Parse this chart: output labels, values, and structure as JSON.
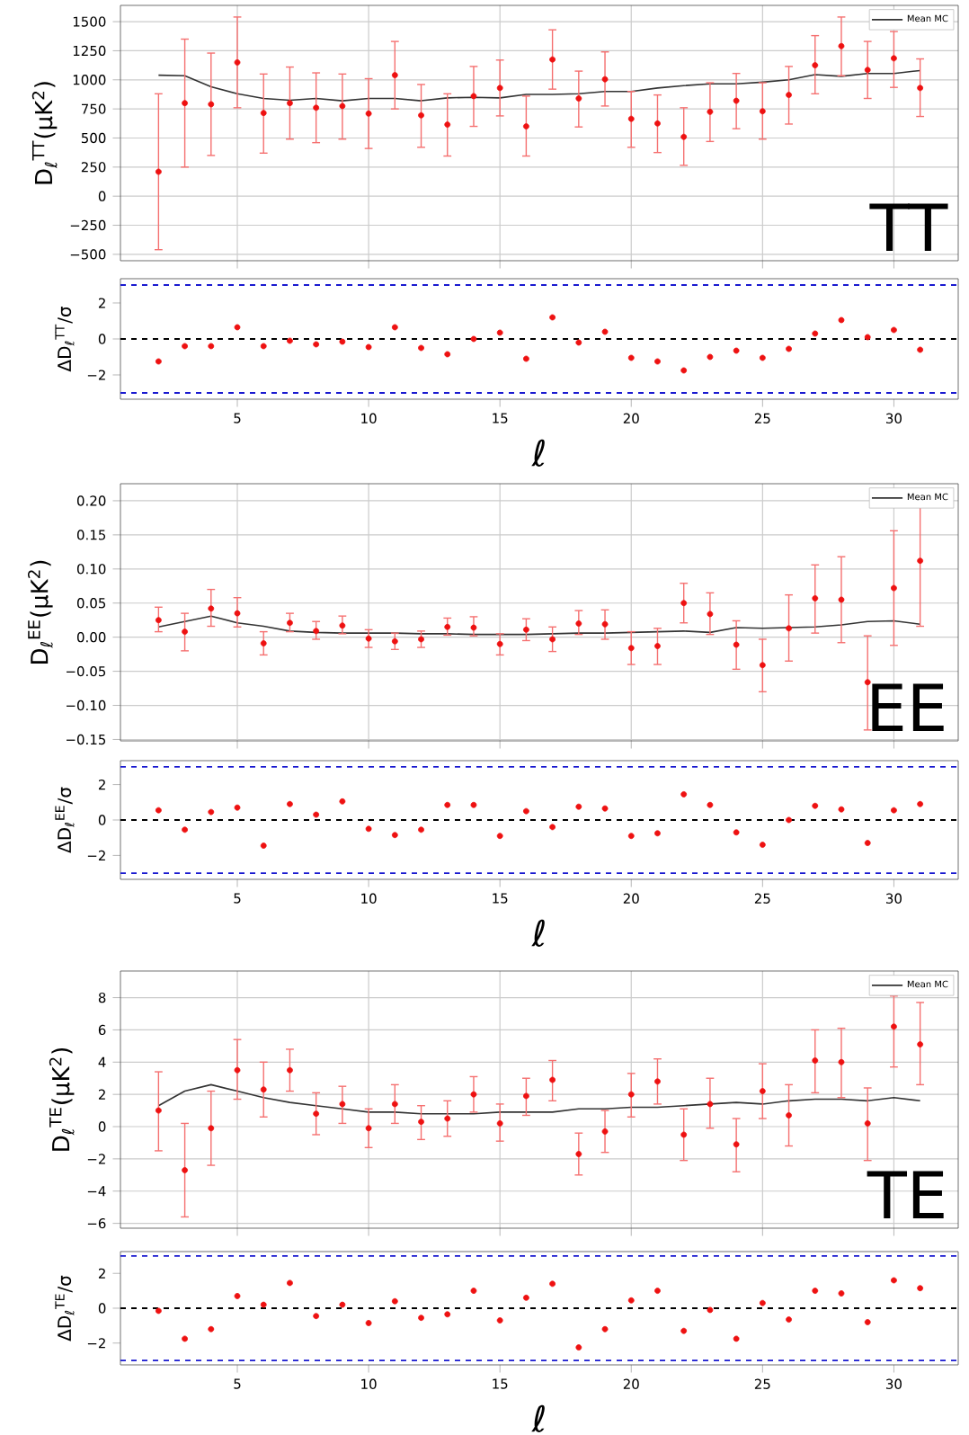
{
  "chart_data": [
    {
      "type": "scatter",
      "x": [
        2,
        3,
        4,
        5,
        6,
        7,
        8,
        9,
        10,
        11,
        12,
        13,
        14,
        15,
        16,
        17,
        18,
        19,
        20,
        21,
        22,
        23,
        24,
        25,
        26,
        27,
        28,
        29,
        30,
        31
      ],
      "xlim": [
        0.55,
        32.45
      ],
      "xticks": [
        5,
        10,
        15,
        20,
        25,
        30
      ],
      "tick_labels": "y",
      "ylim": [
        -555,
        1640
      ],
      "yticks": [
        {
          "value": -500,
          "label": "−500"
        },
        {
          "value": -250,
          "label": "−250"
        },
        0,
        250,
        500,
        750,
        1000,
        1250,
        1500
      ],
      "ylabel": "D$_{ℓ}$$^{TT}$(μK$^{2}$)",
      "grid": true,
      "legend": "top right",
      "annotations": [
        "TT"
      ],
      "series": [
        {
          "name": "Mean MC",
          "type": "line",
          "color": "#333333",
          "marker": "none",
          "values": [
            1040,
            1035,
            940,
            880,
            840,
            825,
            840,
            820,
            840,
            840,
            820,
            845,
            850,
            845,
            875,
            875,
            880,
            900,
            900,
            930,
            950,
            965,
            965,
            980,
            1000,
            1045,
            1030,
            1055,
            1055,
            1080
          ]
        },
        {
          "type": "scatter",
          "color": "#ee1111",
          "marker": "circle",
          "values": [
            210,
            800,
            790,
            1150,
            715,
            800,
            760,
            775,
            710,
            1040,
            695,
            615,
            860,
            930,
            600,
            1175,
            840,
            1005,
            665,
            625,
            510,
            725,
            820,
            730,
            870,
            1125,
            1290,
            1085,
            1185,
            930
          ],
          "errors": [
            [
              -460,
              880
            ],
            [
              250,
              1350
            ],
            [
              350,
              1230
            ],
            [
              760,
              1540
            ],
            [
              370,
              1050
            ],
            [
              490,
              1110
            ],
            [
              460,
              1060
            ],
            [
              490,
              1050
            ],
            [
              410,
              1010
            ],
            [
              750,
              1330
            ],
            [
              420,
              960
            ],
            [
              345,
              880
            ],
            [
              600,
              1115
            ],
            [
              690,
              1170
            ],
            [
              345,
              860
            ],
            [
              920,
              1430
            ],
            [
              595,
              1075
            ],
            [
              775,
              1240
            ],
            [
              420,
              900
            ],
            [
              375,
              870
            ],
            [
              265,
              760
            ],
            [
              470,
              975
            ],
            [
              580,
              1055
            ],
            [
              490,
              975
            ],
            [
              620,
              1115
            ],
            [
              880,
              1380
            ],
            [
              1035,
              1540
            ],
            [
              840,
              1330
            ],
            [
              935,
              1415
            ],
            [
              685,
              1180
            ]
          ]
        }
      ]
    },
    {
      "type": "scatter",
      "x": [
        2,
        3,
        4,
        5,
        6,
        7,
        8,
        9,
        10,
        11,
        12,
        13,
        14,
        15,
        16,
        17,
        18,
        19,
        20,
        21,
        22,
        23,
        24,
        25,
        26,
        27,
        28,
        29,
        30,
        31
      ],
      "xlim": [
        0.55,
        32.45
      ],
      "xticks": [
        5,
        10,
        15,
        20,
        25,
        30
      ],
      "ylim": [
        -3.35,
        3.35
      ],
      "yticks": [
        {
          "value": -2,
          "label": "−2"
        },
        0,
        2
      ],
      "xlabel": "ℓ",
      "ylabel": "ΔD$_{ℓ}$$^{TT}$/σ",
      "color": "#ee1111",
      "marker": "circle",
      "values": [
        -1.25,
        -0.4,
        -0.4,
        0.65,
        -0.4,
        -0.1,
        -0.3,
        -0.15,
        -0.45,
        0.65,
        -0.5,
        -0.85,
        0.0,
        0.35,
        -1.1,
        1.2,
        -0.2,
        0.4,
        -1.05,
        -1.25,
        -1.75,
        -1.0,
        -0.65,
        -1.05,
        -0.55,
        0.3,
        1.05,
        0.1,
        0.5,
        -0.6
      ],
      "ref_lines": [
        {
          "axis": "y",
          "value": 0,
          "color": "#000000",
          "line_style": "dashed"
        },
        {
          "axis": "y",
          "value": 3,
          "color": "#1a1ad0",
          "line_style": "dashed"
        },
        {
          "axis": "y",
          "value": -3,
          "color": "#1a1ad0",
          "line_style": "dashed"
        }
      ]
    },
    {
      "type": "scatter",
      "x": [
        2,
        3,
        4,
        5,
        6,
        7,
        8,
        9,
        10,
        11,
        12,
        13,
        14,
        15,
        16,
        17,
        18,
        19,
        20,
        21,
        22,
        23,
        24,
        25,
        26,
        27,
        28,
        29,
        30,
        31
      ],
      "xlim": [
        0.55,
        32.45
      ],
      "xticks": [
        5,
        10,
        15,
        20,
        25,
        30
      ],
      "tick_labels": "y",
      "ylim": [
        -0.152,
        0.225
      ],
      "yticks": [
        {
          "value": -0.15,
          "label": "−0.15"
        },
        {
          "value": -0.1,
          "label": "−0.10"
        },
        {
          "value": -0.05,
          "label": "−0.05"
        },
        {
          "value": 0,
          "label": "0.00"
        },
        {
          "value": 0.05,
          "label": "0.05"
        },
        {
          "value": 0.1,
          "label": "0.10"
        },
        {
          "value": 0.15,
          "label": "0.15"
        },
        {
          "value": 0.2,
          "label": "0.20"
        }
      ],
      "ylabel": "D$_{ℓ}$$^{EE}$(μK$^{2}$)",
      "grid": true,
      "legend": "top right",
      "annotations": [
        "EE"
      ],
      "series": [
        {
          "name": "Mean MC",
          "type": "line",
          "color": "#333333",
          "marker": "none",
          "values": [
            0.015,
            0.023,
            0.031,
            0.021,
            0.016,
            0.009,
            0.007,
            0.006,
            0.006,
            0.006,
            0.005,
            0.005,
            0.004,
            0.004,
            0.004,
            0.005,
            0.006,
            0.006,
            0.007,
            0.008,
            0.009,
            0.007,
            0.014,
            0.013,
            0.014,
            0.015,
            0.018,
            0.023,
            0.024,
            0.019
          ]
        },
        {
          "type": "scatter",
          "color": "#ee1111",
          "marker": "circle",
          "values": [
            0.025,
            0.008,
            0.042,
            0.035,
            -0.009,
            0.021,
            0.009,
            0.017,
            -0.002,
            -0.006,
            -0.003,
            0.015,
            0.014,
            -0.01,
            0.011,
            -0.003,
            0.02,
            0.019,
            -0.016,
            -0.013,
            0.05,
            0.034,
            -0.011,
            -0.041,
            0.013,
            0.057,
            0.055,
            -0.066,
            0.072,
            0.112
          ],
          "errors": [
            [
              0.008,
              0.044
            ],
            [
              -0.02,
              0.035
            ],
            [
              0.016,
              0.07
            ],
            [
              0.015,
              0.058
            ],
            [
              -0.026,
              0.008
            ],
            [
              0.008,
              0.035
            ],
            [
              -0.003,
              0.023
            ],
            [
              0.005,
              0.031
            ],
            [
              -0.015,
              0.011
            ],
            [
              -0.018,
              0.006
            ],
            [
              -0.015,
              0.009
            ],
            [
              0.003,
              0.028
            ],
            [
              0.002,
              0.03
            ],
            [
              -0.026,
              0.005
            ],
            [
              -0.005,
              0.027
            ],
            [
              -0.021,
              0.015
            ],
            [
              0.004,
              0.039
            ],
            [
              -0.003,
              0.04
            ],
            [
              -0.04,
              0.008
            ],
            [
              -0.04,
              0.013
            ],
            [
              0.021,
              0.079
            ],
            [
              0.004,
              0.065
            ],
            [
              -0.047,
              0.024
            ],
            [
              -0.08,
              -0.003
            ],
            [
              -0.035,
              0.062
            ],
            [
              0.006,
              0.106
            ],
            [
              -0.008,
              0.118
            ],
            [
              -0.136,
              0.002
            ],
            [
              -0.012,
              0.156
            ],
            [
              0.016,
              0.21
            ]
          ]
        }
      ]
    },
    {
      "type": "scatter",
      "x": [
        2,
        3,
        4,
        5,
        6,
        7,
        8,
        9,
        10,
        11,
        12,
        13,
        14,
        15,
        16,
        17,
        18,
        19,
        20,
        21,
        22,
        23,
        24,
        25,
        26,
        27,
        28,
        29,
        30,
        31
      ],
      "xlim": [
        0.55,
        32.45
      ],
      "xticks": [
        5,
        10,
        15,
        20,
        25,
        30
      ],
      "ylim": [
        -3.35,
        3.35
      ],
      "yticks": [
        {
          "value": -2,
          "label": "−2"
        },
        0,
        2
      ],
      "xlabel": "ℓ",
      "ylabel": "ΔD$_{ℓ}$$^{EE}$/σ",
      "color": "#ee1111",
      "marker": "circle",
      "values": [
        0.55,
        -0.55,
        0.45,
        0.7,
        -1.45,
        0.9,
        0.3,
        1.05,
        -0.5,
        -0.85,
        -0.55,
        0.85,
        0.85,
        -0.9,
        0.5,
        -0.4,
        0.75,
        0.65,
        -0.9,
        -0.75,
        1.45,
        0.85,
        -0.7,
        -1.4,
        0.0,
        0.8,
        0.6,
        -1.3,
        0.55,
        0.9
      ],
      "ref_lines": [
        {
          "axis": "y",
          "value": 0,
          "color": "#000000",
          "line_style": "dashed"
        },
        {
          "axis": "y",
          "value": 3,
          "color": "#1a1ad0",
          "line_style": "dashed"
        },
        {
          "axis": "y",
          "value": -3,
          "color": "#1a1ad0",
          "line_style": "dashed"
        }
      ]
    },
    {
      "type": "scatter",
      "x": [
        2,
        3,
        4,
        5,
        6,
        7,
        8,
        9,
        10,
        11,
        12,
        13,
        14,
        15,
        16,
        17,
        18,
        19,
        20,
        21,
        22,
        23,
        24,
        25,
        26,
        27,
        28,
        29,
        30,
        31
      ],
      "xlim": [
        0.55,
        32.45
      ],
      "xticks": [
        5,
        10,
        15,
        20,
        25,
        30
      ],
      "tick_labels": "y",
      "ylim": [
        -6.3,
        9.65
      ],
      "yticks": [
        {
          "value": -6,
          "label": "−6"
        },
        {
          "value": -4,
          "label": "−4"
        },
        {
          "value": -2,
          "label": "−2"
        },
        0,
        2,
        4,
        6,
        8
      ],
      "ylabel": "D$_{ℓ}$$^{TE}$(μK$^{2}$)",
      "grid": true,
      "legend": "top right",
      "annotations": [
        "TE"
      ],
      "series": [
        {
          "name": "Mean MC",
          "type": "line",
          "color": "#333333",
          "marker": "none",
          "values": [
            1.3,
            2.2,
            2.6,
            2.2,
            1.8,
            1.5,
            1.3,
            1.1,
            0.9,
            0.9,
            0.8,
            0.8,
            0.8,
            0.9,
            0.9,
            0.9,
            1.1,
            1.1,
            1.2,
            1.2,
            1.3,
            1.4,
            1.5,
            1.4,
            1.6,
            1.7,
            1.7,
            1.6,
            1.8,
            1.6
          ]
        },
        {
          "type": "scatter",
          "color": "#ee1111",
          "marker": "circle",
          "values": [
            1.0,
            -2.7,
            -0.1,
            3.5,
            2.3,
            3.5,
            0.8,
            1.4,
            -0.1,
            1.4,
            0.3,
            0.5,
            2.0,
            0.2,
            1.9,
            2.9,
            -1.7,
            -0.3,
            2.0,
            2.8,
            -0.5,
            1.4,
            -1.1,
            2.2,
            0.7,
            4.1,
            4.0,
            0.2,
            6.2,
            5.1
          ],
          "errors": [
            [
              -1.5,
              3.4
            ],
            [
              -5.6,
              0.2
            ],
            [
              -2.4,
              2.2
            ],
            [
              1.7,
              5.4
            ],
            [
              0.6,
              4.0
            ],
            [
              2.2,
              4.8
            ],
            [
              -0.5,
              2.1
            ],
            [
              0.2,
              2.5
            ],
            [
              -1.3,
              1.1
            ],
            [
              0.2,
              2.6
            ],
            [
              -0.8,
              1.3
            ],
            [
              -0.6,
              1.6
            ],
            [
              0.9,
              3.1
            ],
            [
              -0.9,
              1.4
            ],
            [
              0.7,
              3.0
            ],
            [
              1.6,
              4.1
            ],
            [
              -3.0,
              -0.4
            ],
            [
              -1.6,
              1.0
            ],
            [
              0.6,
              3.3
            ],
            [
              1.4,
              4.2
            ],
            [
              -2.1,
              1.1
            ],
            [
              -0.1,
              3.0
            ],
            [
              -2.8,
              0.5
            ],
            [
              0.5,
              3.9
            ],
            [
              -1.2,
              2.6
            ],
            [
              2.1,
              6.0
            ],
            [
              1.8,
              6.1
            ],
            [
              -2.1,
              2.4
            ],
            [
              3.7,
              8.1
            ],
            [
              2.6,
              7.7
            ]
          ]
        }
      ]
    },
    {
      "type": "scatter",
      "x": [
        2,
        3,
        4,
        5,
        6,
        7,
        8,
        9,
        10,
        11,
        12,
        13,
        14,
        15,
        16,
        17,
        18,
        19,
        20,
        21,
        22,
        23,
        24,
        25,
        26,
        27,
        28,
        29,
        30,
        31
      ],
      "xlim": [
        0.55,
        32.45
      ],
      "xticks": [
        5,
        10,
        15,
        20,
        25,
        30
      ],
      "ylim": [
        -3.25,
        3.25
      ],
      "yticks": [
        {
          "value": -2,
          "label": "−2"
        },
        0,
        2
      ],
      "xlabel": "ℓ",
      "ylabel": "ΔD$_{ℓ}$$^{TE}$/σ",
      "color": "#ee1111",
      "marker": "circle",
      "values": [
        -0.15,
        -1.75,
        -1.2,
        0.7,
        0.2,
        1.45,
        -0.45,
        0.2,
        -0.85,
        0.4,
        -0.55,
        -0.35,
        1.0,
        -0.7,
        0.6,
        1.4,
        -2.25,
        -1.2,
        0.45,
        1.0,
        -1.3,
        -0.1,
        -1.75,
        0.3,
        -0.65,
        1.0,
        0.85,
        -0.8,
        1.6,
        1.15
      ],
      "ref_lines": [
        {
          "axis": "y",
          "value": 0,
          "color": "#000000",
          "line_style": "dashed"
        },
        {
          "axis": "y",
          "value": 3,
          "color": "#1a1ad0",
          "line_style": "dashed"
        },
        {
          "axis": "y",
          "value": -3,
          "color": "#1a1ad0",
          "line_style": "dashed"
        }
      ]
    }
  ]
}
